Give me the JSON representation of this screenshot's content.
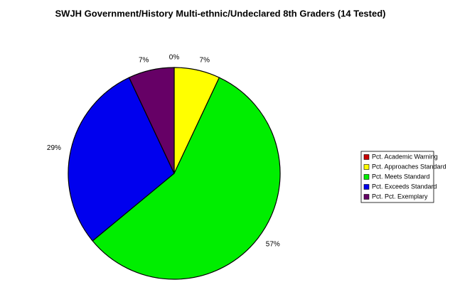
{
  "chart_data": {
    "type": "pie",
    "title": "SWJH Government/History Multi-ethnic/Undeclared 8th Graders (14 Tested)",
    "categories": [
      "Pct. Academic Warning",
      "Pct. Approaches Standard",
      "Pct. Meets Standard",
      "Pct. Exceeds Standard",
      "Pct. Pct. Exemplary"
    ],
    "values": [
      0,
      7,
      57,
      29,
      7
    ],
    "value_labels": [
      "0%",
      "7%",
      "57%",
      "29%",
      "7%"
    ],
    "colors": [
      "#cc0000",
      "#ffff00",
      "#00ee00",
      "#0000ee",
      "#660066"
    ],
    "legend": "right"
  }
}
